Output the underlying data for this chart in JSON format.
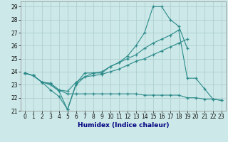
{
  "xlabel": "Humidex (Indice chaleur)",
  "bg_color": "#cce8e8",
  "line_color": "#2d8b8b",
  "grid_color": "#b0d0d0",
  "xlim": [
    -0.5,
    23.5
  ],
  "ylim": [
    21.0,
    29.4
  ],
  "yticks": [
    21,
    22,
    23,
    24,
    25,
    26,
    27,
    28,
    29
  ],
  "xticks": [
    0,
    1,
    2,
    3,
    4,
    5,
    6,
    7,
    8,
    9,
    10,
    11,
    12,
    13,
    14,
    15,
    16,
    17,
    18,
    19,
    20,
    21,
    22,
    23
  ],
  "series": [
    {
      "x": [
        0,
        1,
        2,
        3,
        4,
        5,
        6,
        7,
        8,
        9,
        10,
        11,
        12,
        13,
        14,
        15,
        16,
        17,
        18,
        19
      ],
      "y": [
        23.9,
        23.7,
        23.2,
        22.6,
        22.1,
        21.1,
        23.1,
        23.9,
        23.9,
        23.9,
        24.4,
        24.7,
        25.2,
        26.0,
        27.0,
        29.0,
        29.0,
        28.0,
        27.5,
        25.8
      ]
    },
    {
      "x": [
        0,
        1,
        2,
        3,
        4,
        5,
        6,
        7,
        8,
        9,
        10,
        11,
        12,
        13,
        14,
        15,
        16,
        17,
        18,
        19,
        20,
        21,
        22,
        23
      ],
      "y": [
        23.9,
        23.7,
        23.2,
        23.1,
        22.6,
        22.3,
        22.3,
        22.3,
        22.3,
        22.3,
        22.3,
        22.3,
        22.3,
        22.3,
        22.2,
        22.2,
        22.2,
        22.2,
        22.2,
        22.0,
        22.0,
        21.9,
        21.9,
        21.8
      ]
    },
    {
      "x": [
        0,
        1,
        2,
        3,
        4,
        5,
        6,
        7,
        8,
        9,
        10,
        11,
        12,
        13,
        14,
        15,
        16,
        17,
        18,
        19,
        20,
        21,
        22,
        23
      ],
      "y": [
        23.9,
        23.7,
        23.2,
        23.1,
        22.6,
        22.5,
        23.2,
        23.6,
        23.9,
        24.0,
        24.4,
        24.7,
        25.0,
        25.3,
        25.8,
        26.2,
        26.5,
        26.8,
        27.2,
        23.5,
        23.5,
        22.7,
        21.9,
        21.8
      ]
    },
    {
      "x": [
        0,
        1,
        2,
        3,
        4,
        5,
        6,
        7,
        8,
        9,
        10,
        11,
        12,
        13,
        14,
        15,
        16,
        17,
        18,
        19
      ],
      "y": [
        23.9,
        23.7,
        23.2,
        23.0,
        22.5,
        21.1,
        23.0,
        23.6,
        23.7,
        23.8,
        24.0,
        24.2,
        24.5,
        24.8,
        25.0,
        25.3,
        25.6,
        25.9,
        26.2,
        26.5
      ]
    }
  ],
  "xlabel_color": "#000080",
  "tick_fontsize": 5.5,
  "xlabel_fontsize": 6.5
}
